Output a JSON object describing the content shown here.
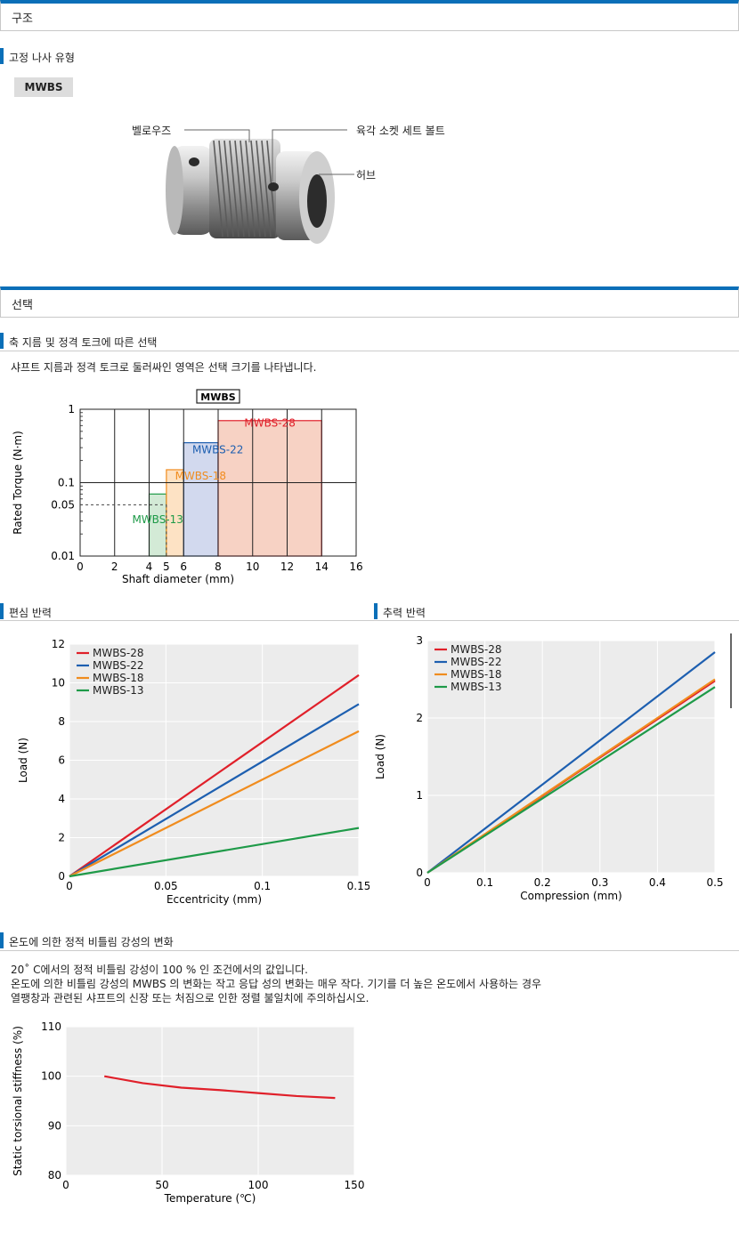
{
  "structure": {
    "section_title": "구조",
    "subhead": "고정 나사 유형",
    "model_tag": "MWBS",
    "labels": {
      "bellows": "벨로우즈",
      "set_bolt": "육각 소켓 세트 볼트",
      "hub": "허브"
    }
  },
  "selection": {
    "section_title": "선택",
    "subhead": "축 지름 및 정격 토크에 따른 선택",
    "description": "샤프트 지름과 정격 토크로 둘러싸인 영역은 선택 크기를 나타냅니다."
  },
  "eccentric_title": "편심 반력",
  "axial_title": "추력 반력",
  "temperature": {
    "subhead": "온도에 의한 정적 비틀림 강성의 변화",
    "line1": "20˚ C에서의 정적 비틀림 강성이 100 % 인 조건에서의 값입니다.",
    "line2": "온도에 의한 비틀림 강성의 MWBS 의 변화는 작고 응답 성의 변화는 매우 작다. 기기를 더 높은 온도에서 사용하는 경우",
    "line3": "열팽창과 관련된 샤프트의 신장 또는 처짐으로 인한 정렬 불일치에 주의하십시오."
  },
  "colors": {
    "accent": "#0a6fb8",
    "red": "#e0202a",
    "blue": "#1d5fb0",
    "orange": "#f08c1e",
    "green": "#1e9a48"
  },
  "chart_data": [
    {
      "type": "area",
      "title": "MWBS",
      "xlabel": "Shaft diameter (mm)",
      "ylabel": "Rated Torque (N·m)",
      "yscale": "log",
      "xlim": [
        0,
        16
      ],
      "ylim": [
        0.01,
        1
      ],
      "xticks": [
        "0",
        "2",
        "4",
        "5",
        "6",
        "8",
        "10",
        "12",
        "14",
        "16"
      ],
      "yticks": [
        "1",
        "0.1",
        "0.05",
        "0.01"
      ],
      "regions": [
        {
          "name": "MWBS-13",
          "x_range": [
            4,
            5
          ],
          "torque_max": 0.07,
          "color": "green"
        },
        {
          "name": "MWBS-18",
          "x_range": [
            5,
            6
          ],
          "torque_max": 0.15,
          "color": "orange"
        },
        {
          "name": "MWBS-22",
          "x_range": [
            6,
            8
          ],
          "torque_max": 0.35,
          "color": "blue"
        },
        {
          "name": "MWBS-28",
          "x_range": [
            8,
            14
          ],
          "torque_max": 0.7,
          "color": "red"
        }
      ]
    },
    {
      "type": "line",
      "xlabel": "Eccentricity (mm)",
      "ylabel": "Load (N)",
      "xlim": [
        0,
        0.15
      ],
      "ylim": [
        0,
        12
      ],
      "xticks": [
        "0",
        "0.05",
        "0.1",
        "0.15"
      ],
      "yticks": [
        "0",
        "2",
        "4",
        "6",
        "8",
        "10",
        "12"
      ],
      "series": [
        {
          "name": "MWBS-28",
          "color": "red",
          "x": [
            0,
            0.15
          ],
          "y": [
            0,
            10.4
          ]
        },
        {
          "name": "MWBS-22",
          "color": "blue",
          "x": [
            0,
            0.15
          ],
          "y": [
            0,
            8.9
          ]
        },
        {
          "name": "MWBS-18",
          "color": "orange",
          "x": [
            0,
            0.15
          ],
          "y": [
            0,
            7.5
          ]
        },
        {
          "name": "MWBS-13",
          "color": "green",
          "x": [
            0,
            0.15
          ],
          "y": [
            0,
            2.5
          ]
        }
      ]
    },
    {
      "type": "line",
      "xlabel": "Compression (mm)",
      "ylabel": "Load (N)",
      "xlim": [
        0,
        0.5
      ],
      "ylim": [
        0,
        3
      ],
      "xticks": [
        "0",
        "0.1",
        "0.2",
        "0.3",
        "0.4",
        "0.5"
      ],
      "yticks": [
        "0",
        "1",
        "2",
        "3"
      ],
      "series": [
        {
          "name": "MWBS-28",
          "color": "red",
          "x": [
            0,
            0.5
          ],
          "y": [
            0,
            2.48
          ]
        },
        {
          "name": "MWBS-22",
          "color": "blue",
          "x": [
            0,
            0.5
          ],
          "y": [
            0,
            2.85
          ]
        },
        {
          "name": "MWBS-18",
          "color": "orange",
          "x": [
            0,
            0.5
          ],
          "y": [
            0,
            2.5
          ]
        },
        {
          "name": "MWBS-13",
          "color": "green",
          "x": [
            0,
            0.5
          ],
          "y": [
            0,
            2.4
          ]
        }
      ]
    },
    {
      "type": "line",
      "xlabel": "Temperature (℃)",
      "ylabel": "Static torsional stiffness (%)",
      "xlim": [
        0,
        150
      ],
      "ylim": [
        80,
        110
      ],
      "xticks": [
        "0",
        "50",
        "100",
        "150"
      ],
      "yticks": [
        "80",
        "90",
        "100",
        "110"
      ],
      "series": [
        {
          "color": "red",
          "x": [
            20,
            40,
            60,
            80,
            100,
            120,
            140
          ],
          "y": [
            100,
            98.6,
            97.7,
            97.2,
            96.6,
            96.0,
            95.6
          ]
        }
      ]
    }
  ]
}
